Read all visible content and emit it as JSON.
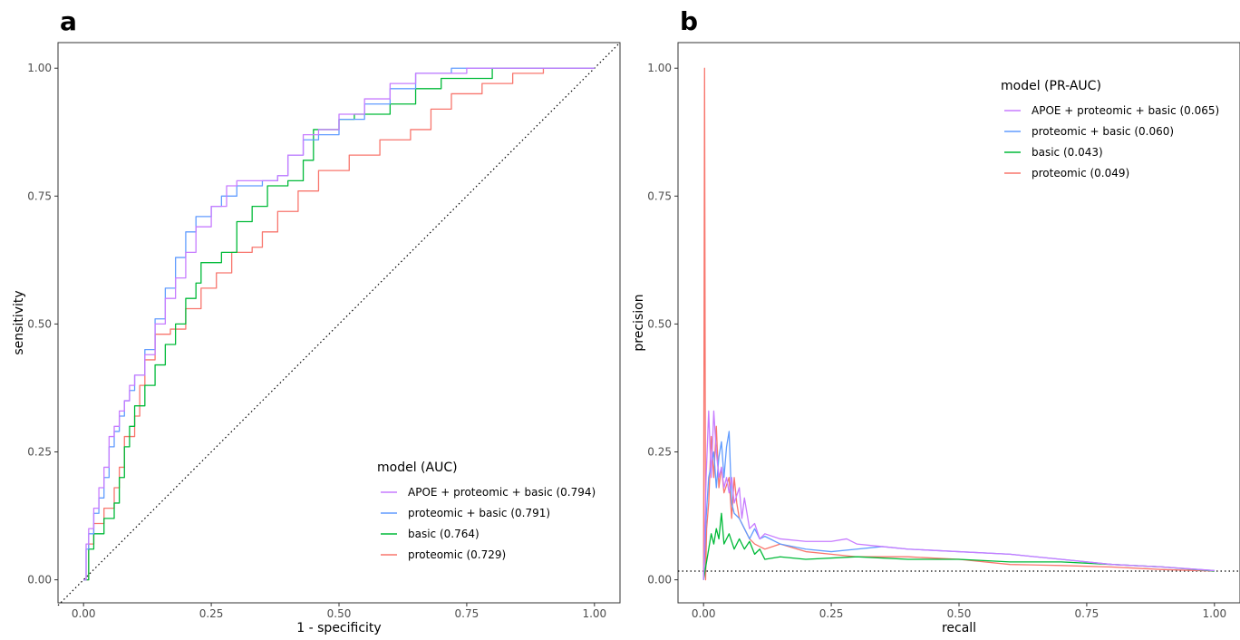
{
  "chart_data": [
    {
      "panel": "a",
      "type": "line",
      "xlabel": "1 - specificity",
      "ylabel": "sensitivity",
      "xlim": [
        -0.05,
        1.05
      ],
      "ylim": [
        -0.045,
        1.05
      ],
      "xticks": [
        "0.00",
        "0.25",
        "0.50",
        "0.75",
        "1.00"
      ],
      "yticks": [
        "0.00",
        "0.25",
        "0.50",
        "0.75",
        "1.00"
      ],
      "grid": false,
      "legend": {
        "title": "model (AUC)",
        "position": "bottom-right",
        "entries": [
          "APOE + proteomic + basic (0.794)",
          "proteomic + basic (0.791)",
          "basic (0.764)",
          "proteomic (0.729)"
        ]
      },
      "reference_line": {
        "style": "dotted",
        "from": [
          -0.05,
          -0.05
        ],
        "to": [
          1.05,
          1.05
        ]
      },
      "series": [
        {
          "color": "#c77cff",
          "step": true,
          "points": [
            [
              0,
              0
            ],
            [
              0.005,
              0.07
            ],
            [
              0.01,
              0.1
            ],
            [
              0.02,
              0.14
            ],
            [
              0.03,
              0.18
            ],
            [
              0.04,
              0.22
            ],
            [
              0.05,
              0.28
            ],
            [
              0.06,
              0.3
            ],
            [
              0.07,
              0.33
            ],
            [
              0.08,
              0.35
            ],
            [
              0.09,
              0.38
            ],
            [
              0.1,
              0.4
            ],
            [
              0.12,
              0.44
            ],
            [
              0.14,
              0.5
            ],
            [
              0.16,
              0.55
            ],
            [
              0.18,
              0.59
            ],
            [
              0.2,
              0.64
            ],
            [
              0.22,
              0.69
            ],
            [
              0.25,
              0.73
            ],
            [
              0.28,
              0.77
            ],
            [
              0.3,
              0.78
            ],
            [
              0.35,
              0.78
            ],
            [
              0.38,
              0.79
            ],
            [
              0.4,
              0.83
            ],
            [
              0.43,
              0.87
            ],
            [
              0.46,
              0.88
            ],
            [
              0.5,
              0.91
            ],
            [
              0.55,
              0.94
            ],
            [
              0.6,
              0.97
            ],
            [
              0.65,
              0.99
            ],
            [
              0.75,
              1
            ],
            [
              0.85,
              1
            ],
            [
              1,
              1
            ]
          ]
        },
        {
          "color": "#619cff",
          "step": true,
          "points": [
            [
              0,
              0
            ],
            [
              0.005,
              0.06
            ],
            [
              0.01,
              0.09
            ],
            [
              0.02,
              0.13
            ],
            [
              0.03,
              0.16
            ],
            [
              0.04,
              0.2
            ],
            [
              0.05,
              0.26
            ],
            [
              0.06,
              0.29
            ],
            [
              0.07,
              0.32
            ],
            [
              0.08,
              0.35
            ],
            [
              0.09,
              0.37
            ],
            [
              0.1,
              0.4
            ],
            [
              0.12,
              0.45
            ],
            [
              0.14,
              0.51
            ],
            [
              0.16,
              0.57
            ],
            [
              0.18,
              0.63
            ],
            [
              0.2,
              0.68
            ],
            [
              0.22,
              0.71
            ],
            [
              0.25,
              0.73
            ],
            [
              0.27,
              0.75
            ],
            [
              0.3,
              0.77
            ],
            [
              0.35,
              0.78
            ],
            [
              0.38,
              0.79
            ],
            [
              0.4,
              0.83
            ],
            [
              0.43,
              0.86
            ],
            [
              0.46,
              0.87
            ],
            [
              0.5,
              0.9
            ],
            [
              0.55,
              0.93
            ],
            [
              0.6,
              0.96
            ],
            [
              0.65,
              0.99
            ],
            [
              0.72,
              1
            ],
            [
              0.85,
              1
            ],
            [
              1,
              1
            ]
          ]
        },
        {
          "color": "#00ba38",
          "step": true,
          "points": [
            [
              0,
              0
            ],
            [
              0.01,
              0.06
            ],
            [
              0.02,
              0.09
            ],
            [
              0.04,
              0.12
            ],
            [
              0.06,
              0.15
            ],
            [
              0.07,
              0.2
            ],
            [
              0.08,
              0.26
            ],
            [
              0.09,
              0.3
            ],
            [
              0.1,
              0.34
            ],
            [
              0.12,
              0.38
            ],
            [
              0.14,
              0.42
            ],
            [
              0.16,
              0.46
            ],
            [
              0.18,
              0.5
            ],
            [
              0.2,
              0.55
            ],
            [
              0.22,
              0.58
            ],
            [
              0.23,
              0.62
            ],
            [
              0.27,
              0.64
            ],
            [
              0.3,
              0.7
            ],
            [
              0.33,
              0.73
            ],
            [
              0.36,
              0.77
            ],
            [
              0.4,
              0.78
            ],
            [
              0.43,
              0.82
            ],
            [
              0.45,
              0.88
            ],
            [
              0.5,
              0.9
            ],
            [
              0.53,
              0.91
            ],
            [
              0.6,
              0.93
            ],
            [
              0.65,
              0.96
            ],
            [
              0.7,
              0.98
            ],
            [
              0.8,
              1
            ],
            [
              1,
              1
            ]
          ]
        },
        {
          "color": "#f8766d",
          "step": true,
          "points": [
            [
              0,
              0
            ],
            [
              0.01,
              0.07
            ],
            [
              0.02,
              0.11
            ],
            [
              0.04,
              0.14
            ],
            [
              0.06,
              0.18
            ],
            [
              0.07,
              0.22
            ],
            [
              0.08,
              0.28
            ],
            [
              0.1,
              0.32
            ],
            [
              0.11,
              0.38
            ],
            [
              0.12,
              0.43
            ],
            [
              0.14,
              0.48
            ],
            [
              0.17,
              0.49
            ],
            [
              0.2,
              0.53
            ],
            [
              0.23,
              0.57
            ],
            [
              0.26,
              0.6
            ],
            [
              0.29,
              0.64
            ],
            [
              0.33,
              0.65
            ],
            [
              0.35,
              0.68
            ],
            [
              0.38,
              0.72
            ],
            [
              0.42,
              0.76
            ],
            [
              0.46,
              0.8
            ],
            [
              0.52,
              0.83
            ],
            [
              0.58,
              0.86
            ],
            [
              0.64,
              0.88
            ],
            [
              0.68,
              0.92
            ],
            [
              0.72,
              0.95
            ],
            [
              0.78,
              0.97
            ],
            [
              0.84,
              0.99
            ],
            [
              0.9,
              1
            ],
            [
              1,
              1
            ]
          ]
        }
      ]
    },
    {
      "panel": "b",
      "type": "line",
      "xlabel": "recall",
      "ylabel": "precision",
      "xlim": [
        -0.05,
        1.05
      ],
      "ylim": [
        -0.045,
        1.05
      ],
      "xticks": [
        "0.00",
        "0.25",
        "0.50",
        "0.75",
        "1.00"
      ],
      "yticks": [
        "0.00",
        "0.25",
        "0.50",
        "0.75",
        "1.00"
      ],
      "grid": false,
      "legend": {
        "title": "model (PR-AUC)",
        "position": "top-right",
        "entries": [
          "APOE + proteomic + basic (0.065)",
          "proteomic + basic (0.060)",
          "basic (0.043)",
          "proteomic (0.049)"
        ]
      },
      "reference_line": {
        "style": "dotted",
        "y": 0.017
      },
      "series": [
        {
          "color": "#c77cff",
          "step": false,
          "points": [
            [
              0,
              0
            ],
            [
              0.005,
              0.2
            ],
            [
              0.01,
              0.33
            ],
            [
              0.015,
              0.2
            ],
            [
              0.02,
              0.33
            ],
            [
              0.025,
              0.25
            ],
            [
              0.03,
              0.2
            ],
            [
              0.035,
              0.22
            ],
            [
              0.04,
              0.18
            ],
            [
              0.045,
              0.2
            ],
            [
              0.05,
              0.17
            ],
            [
              0.055,
              0.2
            ],
            [
              0.06,
              0.15
            ],
            [
              0.07,
              0.18
            ],
            [
              0.075,
              0.12
            ],
            [
              0.08,
              0.16
            ],
            [
              0.09,
              0.1
            ],
            [
              0.1,
              0.11
            ],
            [
              0.11,
              0.08
            ],
            [
              0.12,
              0.09
            ],
            [
              0.15,
              0.08
            ],
            [
              0.2,
              0.075
            ],
            [
              0.25,
              0.075
            ],
            [
              0.28,
              0.08
            ],
            [
              0.3,
              0.07
            ],
            [
              0.35,
              0.065
            ],
            [
              0.4,
              0.06
            ],
            [
              0.5,
              0.055
            ],
            [
              0.6,
              0.05
            ],
            [
              0.7,
              0.04
            ],
            [
              0.8,
              0.03
            ],
            [
              0.9,
              0.025
            ],
            [
              1,
              0.018
            ]
          ]
        },
        {
          "color": "#619cff",
          "step": false,
          "points": [
            [
              0,
              0
            ],
            [
              0.005,
              0.12
            ],
            [
              0.01,
              0.2
            ],
            [
              0.02,
              0.25
            ],
            [
              0.025,
              0.18
            ],
            [
              0.03,
              0.24
            ],
            [
              0.035,
              0.27
            ],
            [
              0.04,
              0.2
            ],
            [
              0.045,
              0.26
            ],
            [
              0.05,
              0.29
            ],
            [
              0.055,
              0.15
            ],
            [
              0.06,
              0.13
            ],
            [
              0.07,
              0.12
            ],
            [
              0.08,
              0.1
            ],
            [
              0.09,
              0.08
            ],
            [
              0.1,
              0.1
            ],
            [
              0.11,
              0.08
            ],
            [
              0.12,
              0.085
            ],
            [
              0.15,
              0.07
            ],
            [
              0.2,
              0.06
            ],
            [
              0.25,
              0.055
            ],
            [
              0.3,
              0.06
            ],
            [
              0.35,
              0.065
            ],
            [
              0.4,
              0.06
            ],
            [
              0.5,
              0.055
            ],
            [
              0.6,
              0.05
            ],
            [
              0.7,
              0.04
            ],
            [
              0.8,
              0.03
            ],
            [
              0.9,
              0.025
            ],
            [
              1,
              0.018
            ]
          ]
        },
        {
          "color": "#00ba38",
          "step": false,
          "points": [
            [
              0,
              0
            ],
            [
              0.01,
              0.06
            ],
            [
              0.015,
              0.09
            ],
            [
              0.02,
              0.07
            ],
            [
              0.025,
              0.1
            ],
            [
              0.03,
              0.08
            ],
            [
              0.035,
              0.13
            ],
            [
              0.04,
              0.07
            ],
            [
              0.05,
              0.09
            ],
            [
              0.06,
              0.06
            ],
            [
              0.07,
              0.08
            ],
            [
              0.08,
              0.06
            ],
            [
              0.09,
              0.075
            ],
            [
              0.1,
              0.05
            ],
            [
              0.11,
              0.06
            ],
            [
              0.12,
              0.04
            ],
            [
              0.15,
              0.045
            ],
            [
              0.2,
              0.04
            ],
            [
              0.3,
              0.045
            ],
            [
              0.4,
              0.04
            ],
            [
              0.5,
              0.04
            ],
            [
              0.6,
              0.035
            ],
            [
              0.7,
              0.035
            ],
            [
              0.8,
              0.03
            ],
            [
              0.9,
              0.025
            ],
            [
              1,
              0.017
            ]
          ]
        },
        {
          "color": "#f8766d",
          "step": false,
          "points": [
            [
              0,
              0
            ],
            [
              0.002,
              1
            ],
            [
              0.004,
              0
            ],
            [
              0.006,
              0.1
            ],
            [
              0.01,
              0.15
            ],
            [
              0.015,
              0.28
            ],
            [
              0.02,
              0.2
            ],
            [
              0.025,
              0.3
            ],
            [
              0.03,
              0.18
            ],
            [
              0.035,
              0.22
            ],
            [
              0.04,
              0.17
            ],
            [
              0.05,
              0.2
            ],
            [
              0.055,
              0.12
            ],
            [
              0.06,
              0.2
            ],
            [
              0.065,
              0.15
            ],
            [
              0.07,
              0.12
            ],
            [
              0.08,
              0.1
            ],
            [
              0.09,
              0.08
            ],
            [
              0.1,
              0.07
            ],
            [
              0.11,
              0.065
            ],
            [
              0.12,
              0.06
            ],
            [
              0.15,
              0.07
            ],
            [
              0.2,
              0.055
            ],
            [
              0.25,
              0.05
            ],
            [
              0.3,
              0.045
            ],
            [
              0.4,
              0.045
            ],
            [
              0.5,
              0.04
            ],
            [
              0.6,
              0.03
            ],
            [
              0.7,
              0.028
            ],
            [
              0.8,
              0.025
            ],
            [
              0.9,
              0.02
            ],
            [
              1,
              0.017
            ]
          ]
        }
      ]
    }
  ]
}
